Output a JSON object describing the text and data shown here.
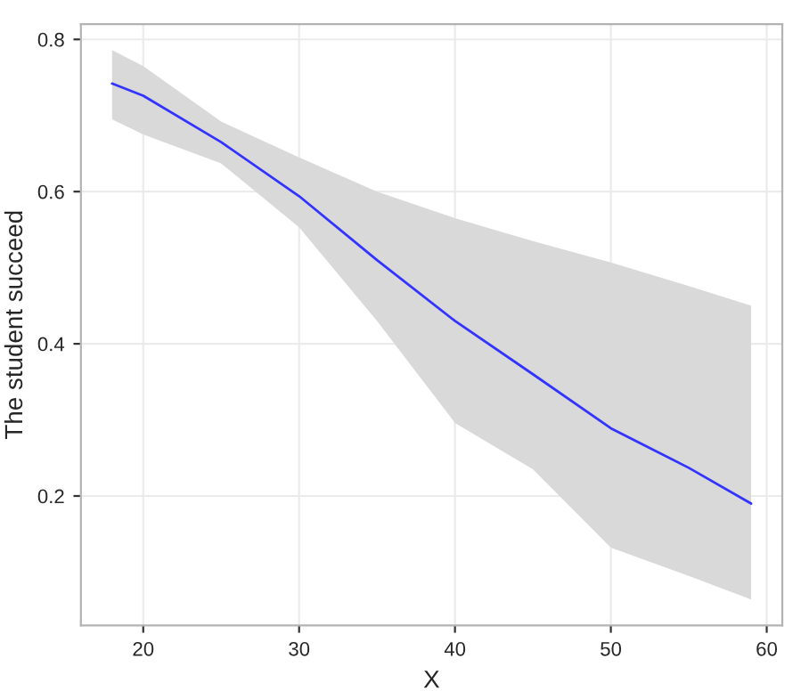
{
  "chart_data": {
    "type": "line",
    "xlabel": "X",
    "ylabel": "The student succeed",
    "xlim": [
      16.0,
      61.0
    ],
    "ylim": [
      0.03,
      0.82
    ],
    "xticks": [
      20,
      30,
      40,
      50,
      60
    ],
    "yticks": [
      0.2,
      0.4,
      0.6,
      0.8
    ],
    "grid": true,
    "series": [
      {
        "color": "#3333ff",
        "x": [
          18,
          20,
          25,
          30,
          35,
          40,
          45,
          50,
          55,
          59
        ],
        "values": [
          0.742,
          0.726,
          0.665,
          0.594,
          0.51,
          0.43,
          0.36,
          0.289,
          0.237,
          0.19
        ],
        "lower": [
          0.695,
          0.675,
          0.637,
          0.553,
          0.43,
          0.296,
          0.235,
          0.132,
          0.095,
          0.064
        ],
        "upper": [
          0.786,
          0.765,
          0.692,
          0.645,
          0.6,
          0.565,
          0.535,
          0.507,
          0.476,
          0.45
        ]
      }
    ]
  }
}
